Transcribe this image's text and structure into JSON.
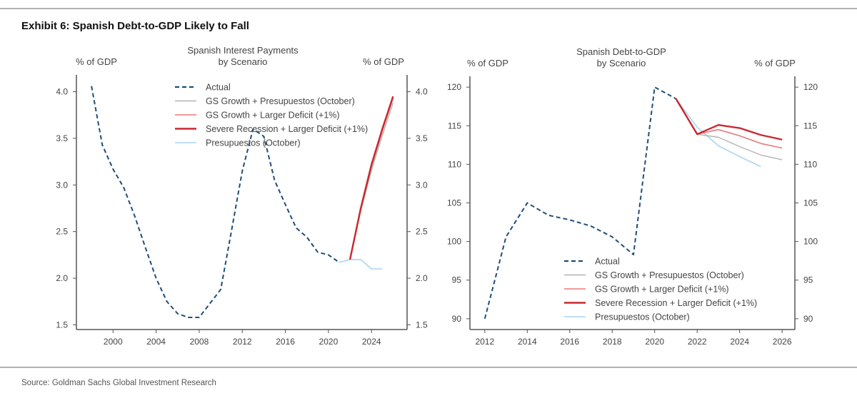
{
  "header": {
    "title": "Exhibit 6: Spanish Debt-to-GDP Likely to Fall"
  },
  "footer": {
    "source": "Source: Goldman Sachs Global Investment Research"
  },
  "colors": {
    "actual": "#1f4e79",
    "gs_presupuestos": "#b3b3b3",
    "larger_deficit": "#e8797b",
    "severe_recession": "#c8282d",
    "presupuestos": "#a9d4f2"
  },
  "chart_data": [
    {
      "type": "line",
      "title_lines": [
        "Spanish Interest Payments",
        "by Scenario"
      ],
      "ylabel_left": "% of GDP",
      "ylabel_right": "% of GDP",
      "xlim": [
        1996.6,
        2027.3
      ],
      "ylim": [
        1.45,
        4.18
      ],
      "xticks": [
        2000,
        2004,
        2008,
        2012,
        2016,
        2020,
        2024
      ],
      "yticks": [
        1.5,
        2.0,
        2.5,
        3.0,
        3.5,
        4.0
      ],
      "ytick_labels": [
        "1.5",
        "2.0",
        "2.5",
        "3.0",
        "3.5",
        "4.0"
      ],
      "grid": false,
      "legend_position": "top-center",
      "series": [
        {
          "name": "Actual",
          "style": "dashed",
          "color_key": "actual",
          "x": [
            1998,
            1999,
            2000,
            2001,
            2002,
            2003,
            2004,
            2005,
            2006,
            2007,
            2008,
            2009,
            2010,
            2011,
            2012,
            2013,
            2014,
            2015,
            2016,
            2017,
            2018,
            2019,
            2020,
            2021
          ],
          "y": [
            4.06,
            3.43,
            3.17,
            2.97,
            2.67,
            2.33,
            2.0,
            1.75,
            1.62,
            1.58,
            1.58,
            1.73,
            1.88,
            2.51,
            3.15,
            3.6,
            3.52,
            3.05,
            2.79,
            2.54,
            2.44,
            2.28,
            2.25,
            2.17
          ]
        },
        {
          "name": "GS Growth + Presupuestos (October)",
          "style": "solid",
          "color_key": "gs_presupuestos",
          "x": [
            2022,
            2023,
            2024,
            2025,
            2026
          ],
          "y": [
            2.2,
            2.72,
            3.16,
            3.53,
            3.88
          ]
        },
        {
          "name": "GS Growth + Larger Deficit (+1%)",
          "style": "solid",
          "color_key": "larger_deficit",
          "x": [
            2022,
            2023,
            2024,
            2025,
            2026
          ],
          "y": [
            2.2,
            2.74,
            3.2,
            3.58,
            3.93
          ]
        },
        {
          "name": "Severe Recession + Larger Deficit (+1%)",
          "style": "solid",
          "color_key": "severe_recession",
          "x": [
            2022,
            2023,
            2024,
            2025,
            2026
          ],
          "y": [
            2.2,
            2.75,
            3.22,
            3.6,
            3.95
          ]
        },
        {
          "name": "Presupuestos (October)",
          "style": "solid",
          "color_key": "presupuestos",
          "x": [
            2021,
            2022,
            2023,
            2024,
            2025
          ],
          "y": [
            2.17,
            2.2,
            2.2,
            2.1,
            2.1
          ]
        }
      ]
    },
    {
      "type": "line",
      "title_lines": [
        "Spanish Debt-to-GDP",
        "by Scenario"
      ],
      "ylabel_left": "% of GDP",
      "ylabel_right": "% of GDP",
      "xlim": [
        2011.3,
        2026.6
      ],
      "ylim": [
        88.6,
        121.4
      ],
      "xticks": [
        2012,
        2014,
        2016,
        2018,
        2020,
        2022,
        2024,
        2026
      ],
      "yticks": [
        90,
        95,
        100,
        105,
        110,
        115,
        120
      ],
      "ytick_labels": [
        "90",
        "95",
        "100",
        "105",
        "110",
        "115",
        "120"
      ],
      "grid": false,
      "legend_position": "bottom-right",
      "series": [
        {
          "name": "Actual",
          "style": "dashed",
          "color_key": "actual",
          "x": [
            2012,
            2013,
            2014,
            2015,
            2016,
            2017,
            2018,
            2019,
            2020,
            2021
          ],
          "y": [
            90,
            100.6,
            105,
            103.4,
            102.8,
            102.0,
            100.6,
            98.3,
            120,
            118.5
          ]
        },
        {
          "name": "GS Growth + Presupuestos (October)",
          "style": "solid",
          "color_key": "gs_presupuestos",
          "x": [
            2021,
            2022,
            2023,
            2024,
            2025,
            2026
          ],
          "y": [
            118.5,
            113.9,
            113.5,
            112.3,
            111.2,
            110.6
          ]
        },
        {
          "name": "GS Growth + Larger Deficit (+1%)",
          "style": "solid",
          "color_key": "larger_deficit",
          "x": [
            2021,
            2022,
            2023,
            2024,
            2025,
            2026
          ],
          "y": [
            118.5,
            113.9,
            114.5,
            113.7,
            112.7,
            112.1
          ]
        },
        {
          "name": "Severe Recession + Larger Deficit (+1%)",
          "style": "solid",
          "color_key": "severe_recession",
          "x": [
            2021,
            2022,
            2023,
            2024,
            2025,
            2026
          ],
          "y": [
            118.5,
            113.9,
            115.1,
            114.7,
            113.8,
            113.2
          ]
        },
        {
          "name": "Presupuestos (October)",
          "style": "solid",
          "color_key": "presupuestos",
          "x": [
            2021,
            2022,
            2023,
            2024,
            2025
          ],
          "y": [
            118.5,
            114.8,
            112.4,
            111.0,
            109.7
          ]
        }
      ]
    }
  ]
}
